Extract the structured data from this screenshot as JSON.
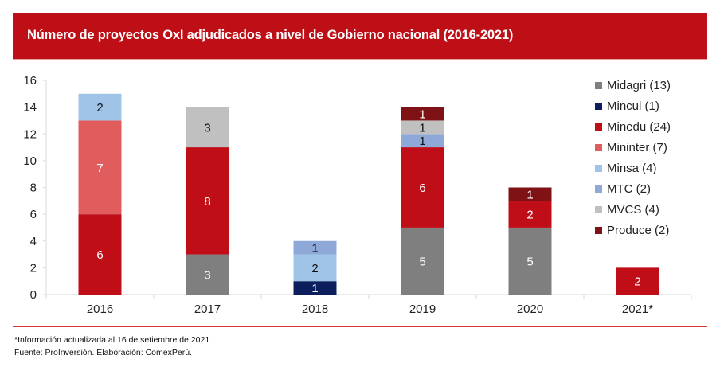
{
  "header": {
    "title": "Número de proyectos OxI adjudicados a nivel de Gobierno nacional (2016-2021)"
  },
  "chart_data": {
    "type": "bar",
    "stacked": true,
    "title": "Número de proyectos OxI adjudicados a nivel de Gobierno nacional (2016-2021)",
    "xlabel": "",
    "ylabel": "",
    "categories": [
      "2016",
      "2017",
      "2018",
      "2019",
      "2020",
      "2021*"
    ],
    "ylim": [
      0,
      16
    ],
    "yticks": [
      0,
      2,
      4,
      6,
      8,
      10,
      12,
      14,
      16
    ],
    "grid": false,
    "legend_position": "right",
    "series": [
      {
        "name": "Midagri (13)",
        "color": "#7f7f7f",
        "label_color": "#ffffff",
        "values": [
          0,
          3,
          0,
          5,
          5,
          0
        ]
      },
      {
        "name": "Mincul (1)",
        "color": "#0c1f5c",
        "label_color": "#ffffff",
        "values": [
          0,
          0,
          1,
          0,
          0,
          0
        ]
      },
      {
        "name": "Minedu (24)",
        "color": "#c00e19",
        "label_color": "#ffffff",
        "values": [
          6,
          8,
          0,
          6,
          2,
          2
        ]
      },
      {
        "name": "Mininter (7)",
        "color": "#e15c5c",
        "label_color": "#ffffff",
        "values": [
          7,
          0,
          0,
          0,
          0,
          0
        ]
      },
      {
        "name": "Minsa (4)",
        "color": "#a0c4e8",
        "label_color": "#111111",
        "values": [
          2,
          0,
          2,
          0,
          0,
          0
        ]
      },
      {
        "name": "MTC (2)",
        "color": "#8ea9d8",
        "label_color": "#111111",
        "values": [
          0,
          0,
          1,
          1,
          0,
          0
        ]
      },
      {
        "name": "MVCS (4)",
        "color": "#c0c0c0",
        "label_color": "#111111",
        "values": [
          0,
          3,
          0,
          1,
          0,
          0
        ]
      },
      {
        "name": "Produce (2)",
        "color": "#7f1214",
        "label_color": "#ffffff",
        "values": [
          0,
          0,
          0,
          1,
          1,
          0
        ]
      }
    ]
  },
  "footer": {
    "note": "*Información actualizada al 16 de setiembre de 2021.",
    "source": "Fuente: ProInversión. Elaboración: ComexPerú."
  }
}
